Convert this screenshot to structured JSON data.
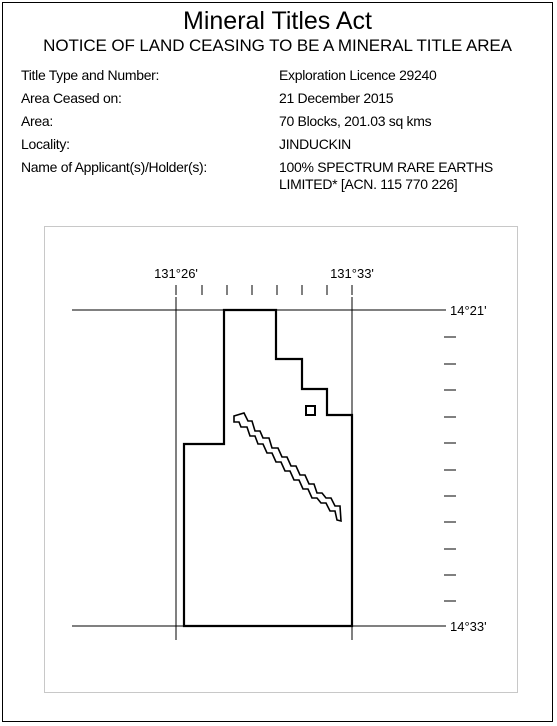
{
  "notice": {
    "title": "Mineral Titles Act",
    "subtitle": "NOTICE OF LAND CEASING TO BE A  MINERAL TITLE AREA",
    "fields": [
      {
        "label": "Title Type and Number:",
        "value": "Exploration Licence 29240"
      },
      {
        "label": "Area Ceased on:",
        "value": "21 December 2015"
      },
      {
        "label": "Area:",
        "value": "70 Blocks, 201.03 sq kms"
      },
      {
        "label": "Locality:",
        "value": "JINDUCKIN"
      },
      {
        "label": "Name of Applicant(s)/Holder(s):",
        "value": "100% SPECTRUM RARE EARTHS",
        "value_line2": "LIMITED* [ACN. 115 770 226]"
      }
    ]
  },
  "map": {
    "longitude_labels": [
      "131°26'",
      "131°33'"
    ],
    "latitude_labels": [
      "14°21'",
      "14°33'"
    ],
    "line_color": "#000000",
    "frame_color": "#c8c8c8"
  }
}
